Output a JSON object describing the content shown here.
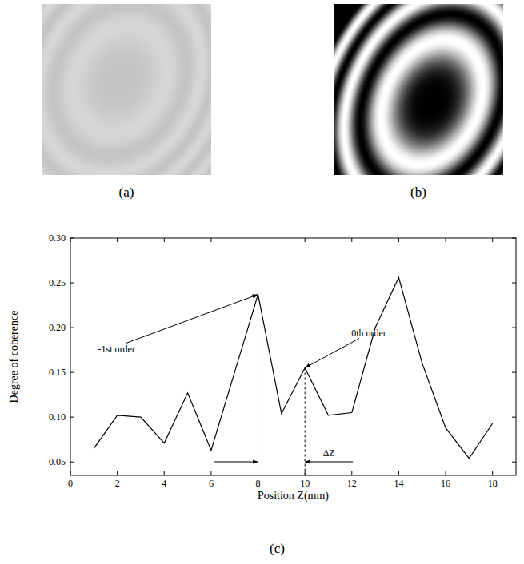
{
  "figure": {
    "panels": [
      {
        "label": "(a)"
      },
      {
        "label": "(b)"
      }
    ],
    "chart_label": "(c)"
  },
  "chart_data": {
    "type": "line",
    "x_label": "Position Z(mm)",
    "y_label": "Degree of coherence",
    "x": [
      1,
      2,
      3,
      4,
      5,
      6,
      7,
      8,
      9,
      10,
      11,
      12,
      13,
      14,
      15,
      16,
      17,
      18
    ],
    "values": [
      0.065,
      0.102,
      0.1,
      0.071,
      0.127,
      0.063,
      0.15,
      0.237,
      0.104,
      0.155,
      0.102,
      0.105,
      0.2,
      0.256,
      0.16,
      0.088,
      0.054,
      0.093
    ],
    "color": "#000000",
    "marker": "none",
    "line_style": "solid",
    "xlim": [
      0,
      19
    ],
    "ylim": [
      0.035,
      0.3
    ],
    "xticks": [
      0,
      2,
      4,
      6,
      8,
      10,
      12,
      14,
      16,
      18
    ],
    "yticks": [
      0.05,
      {
        "value": 0.1,
        "label": "0.10"
      },
      0.15,
      {
        "value": 0.2,
        "label": "0.20"
      },
      0.25,
      {
        "value": 0.3,
        "label": "0.30"
      }
    ],
    "grid": false,
    "annotations": [
      {
        "text": "-1st order",
        "x": 8,
        "y": 0.237
      },
      {
        "text": "0th order",
        "x": 10,
        "y": 0.155
      }
    ],
    "interval": {
      "label": "ΔZ",
      "from": 8,
      "to": 10
    }
  }
}
